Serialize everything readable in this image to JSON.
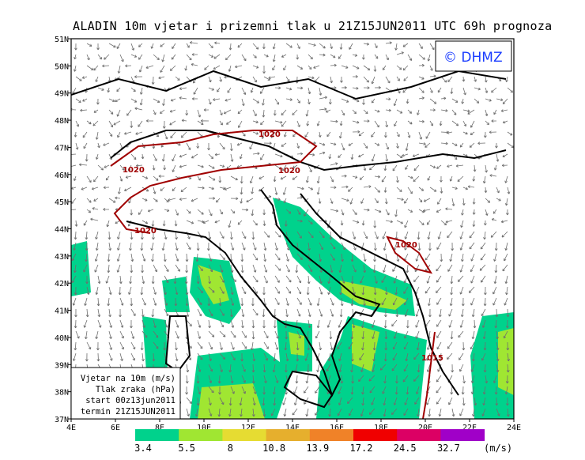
{
  "title": "ALADIN 10m vjetar i prizemni tlak u 21Z15JUN2011 UTC 69h prognoza",
  "logo": "© DHMZ",
  "legend_box": {
    "lines": [
      "Vjetar na 10m (m/s)",
      "Tlak zraka (hPa)",
      "start 00z13jun2011",
      "termin 21Z15JUN2011"
    ]
  },
  "map": {
    "lon_ticks": [
      "4E",
      "6E",
      "8E",
      "10E",
      "12E",
      "14E",
      "16E",
      "18E",
      "20E",
      "22E",
      "24E"
    ],
    "lat_ticks": [
      "51N",
      "50N",
      "49N",
      "48N",
      "47N",
      "46N",
      "45N",
      "44N",
      "43N",
      "42N",
      "41N",
      "40N",
      "39N",
      "38N",
      "37N"
    ],
    "lon_range": [
      4,
      24
    ],
    "lat_range": [
      37,
      51
    ],
    "contour_labels": [
      "1020",
      "1020",
      "1020",
      "1020",
      "1020",
      "1015"
    ],
    "contour_color": "#a00000",
    "arrow_color": "#6e6e6e",
    "border_color": "#000000"
  },
  "colorbar": {
    "labels": [
      "3.4",
      "5.5",
      "8",
      "10.8",
      "13.9",
      "17.2",
      "24.5",
      "32.7"
    ],
    "colors": [
      "#00d28c",
      "#a0e632",
      "#e6dc32",
      "#e6af2d",
      "#f08228",
      "#f00000",
      "#dc0064",
      "#a000c8"
    ],
    "unit": "(m/s)"
  }
}
